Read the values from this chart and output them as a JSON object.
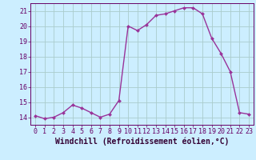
{
  "x": [
    0,
    1,
    2,
    3,
    4,
    5,
    6,
    7,
    8,
    9,
    10,
    11,
    12,
    13,
    14,
    15,
    16,
    17,
    18,
    19,
    20,
    21,
    22,
    23
  ],
  "y": [
    14.1,
    13.9,
    14.0,
    14.3,
    14.8,
    14.6,
    14.3,
    14.0,
    14.2,
    15.1,
    20.0,
    19.7,
    20.1,
    20.7,
    20.8,
    21.0,
    21.2,
    21.2,
    20.8,
    19.2,
    18.2,
    17.0,
    14.3,
    14.2
  ],
  "line_color": "#993399",
  "marker_color": "#993399",
  "bg_color": "#cceeff",
  "grid_color": "#aacccc",
  "xlabel": "Windchill (Refroidissement éolien,°C)",
  "xlim": [
    -0.5,
    23.5
  ],
  "ylim": [
    13.5,
    21.5
  ],
  "yticks": [
    14,
    15,
    16,
    17,
    18,
    19,
    20,
    21
  ],
  "xticks": [
    0,
    1,
    2,
    3,
    4,
    5,
    6,
    7,
    8,
    9,
    10,
    11,
    12,
    13,
    14,
    15,
    16,
    17,
    18,
    19,
    20,
    21,
    22,
    23
  ],
  "xlabel_fontsize": 7,
  "tick_fontsize": 6,
  "line_width": 1.0,
  "marker_size": 2.0
}
